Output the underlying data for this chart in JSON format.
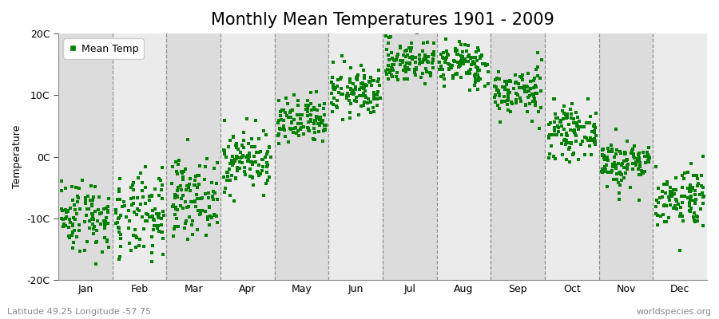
{
  "title": "Monthly Mean Temperatures 1901 - 2009",
  "ylabel": "Temperature",
  "ylim": [
    -20,
    20
  ],
  "yticks": [
    -20,
    -10,
    0,
    10,
    20
  ],
  "ytick_labels": [
    "-20C",
    "-10C",
    "0C",
    "10C",
    "20C"
  ],
  "months": [
    "Jan",
    "Feb",
    "Mar",
    "Apr",
    "May",
    "Jun",
    "Jul",
    "Aug",
    "Sep",
    "Oct",
    "Nov",
    "Dec"
  ],
  "scatter_color": "#008000",
  "bg_light": "#EBEBEB",
  "bg_dark": "#DCDCDC",
  "dot_size": 5,
  "legend_label": "Mean Temp",
  "footer_left": "Latitude 49.25 Longitude -57.75",
  "footer_right": "worldspecies.org",
  "title_fontsize": 15,
  "label_fontsize": 9,
  "tick_fontsize": 9,
  "footer_fontsize": 8,
  "monthly_mean_temps": {
    "Jan": -9.5,
    "Feb": -10.0,
    "Mar": -6.5,
    "Apr": -0.5,
    "May": 5.5,
    "Jun": 10.5,
    "Jul": 15.5,
    "Aug": 15.0,
    "Sep": 10.5,
    "Oct": 4.0,
    "Nov": -1.0,
    "Dec": -6.5
  },
  "monthly_std_temps": {
    "Jan": 3.0,
    "Feb": 3.5,
    "Mar": 3.0,
    "Apr": 2.5,
    "May": 2.0,
    "Jun": 2.0,
    "Jul": 1.8,
    "Aug": 1.8,
    "Sep": 2.0,
    "Oct": 2.0,
    "Nov": 2.0,
    "Dec": 2.5
  },
  "n_years": 109,
  "seed": 42
}
